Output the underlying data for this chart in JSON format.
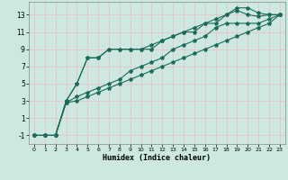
{
  "title": "",
  "xlabel": "Humidex (Indice chaleur)",
  "bg_color": "#cce8e0",
  "grid_color": "#e8c8c8",
  "line_color": "#1a6b5a",
  "xlim": [
    -0.5,
    23.5
  ],
  "ylim": [
    -2.0,
    14.5
  ],
  "xticks": [
    0,
    1,
    2,
    3,
    4,
    5,
    6,
    7,
    8,
    9,
    10,
    11,
    12,
    13,
    14,
    15,
    16,
    17,
    18,
    19,
    20,
    21,
    22,
    23
  ],
  "yticks": [
    -1,
    1,
    3,
    5,
    7,
    9,
    11,
    13
  ],
  "lines": [
    {
      "x": [
        0,
        1,
        2,
        3,
        4,
        5,
        6,
        7,
        8,
        9,
        10,
        11,
        12,
        13,
        14,
        15,
        16,
        17,
        18,
        19,
        20,
        21,
        22,
        23
      ],
      "y": [
        -1,
        -1,
        -1,
        3,
        5,
        8,
        8,
        9,
        9,
        9,
        9,
        9,
        10,
        10.5,
        11,
        11,
        12,
        12,
        13,
        13.8,
        13.8,
        13.2,
        13,
        13
      ]
    },
    {
      "x": [
        0,
        1,
        2,
        3,
        4,
        5,
        6,
        7,
        8,
        9,
        10,
        11,
        12,
        13,
        14,
        15,
        16,
        17,
        18,
        19,
        20,
        21,
        22,
        23
      ],
      "y": [
        -1,
        -1,
        -1,
        3,
        5,
        8,
        8,
        9,
        9,
        9,
        9,
        9.5,
        10,
        10.5,
        11,
        11.5,
        12,
        12.5,
        13,
        13.5,
        13,
        12.8,
        13,
        13
      ]
    },
    {
      "x": [
        0,
        1,
        2,
        3,
        4,
        5,
        6,
        7,
        8,
        9,
        10,
        11,
        12,
        13,
        14,
        15,
        16,
        17,
        18,
        19,
        20,
        21,
        22,
        23
      ],
      "y": [
        -1,
        -1,
        -1,
        2.8,
        3.5,
        4,
        4.5,
        5,
        5.5,
        6.5,
        7,
        7.5,
        8,
        9,
        9.5,
        10,
        10.5,
        11.5,
        12,
        12,
        12,
        12,
        12.5,
        13
      ]
    },
    {
      "x": [
        0,
        1,
        2,
        3,
        4,
        5,
        6,
        7,
        8,
        9,
        10,
        11,
        12,
        13,
        14,
        15,
        16,
        17,
        18,
        19,
        20,
        21,
        22,
        23
      ],
      "y": [
        -1,
        -1,
        -1,
        2.8,
        3,
        3.5,
        4,
        4.5,
        5,
        5.5,
        6,
        6.5,
        7,
        7.5,
        8,
        8.5,
        9,
        9.5,
        10,
        10.5,
        11,
        11.5,
        12,
        13
      ]
    }
  ]
}
